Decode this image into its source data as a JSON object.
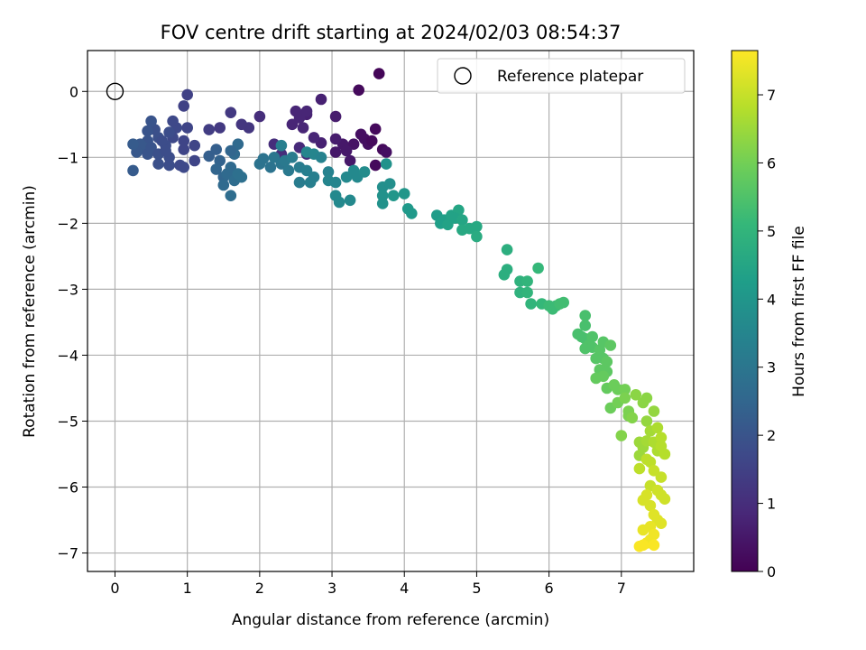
{
  "chart_data": {
    "type": "scatter",
    "title": "FOV centre drift starting at 2024/02/03 08:54:37",
    "xlabel": "Angular distance from reference (arcmin)",
    "ylabel": "Rotation from reference (arcmin)",
    "xlim": [
      -0.38,
      8.0
    ],
    "ylim": [
      -7.28,
      0.62
    ],
    "xticks": [
      0,
      1,
      2,
      3,
      4,
      5,
      6,
      7
    ],
    "yticks": [
      0,
      -1,
      -2,
      -3,
      -4,
      -5,
      -6,
      -7
    ],
    "grid": true,
    "legend": {
      "position": "top-right",
      "entries": [
        {
          "label": "Reference platepar",
          "marker": "open-circle"
        }
      ]
    },
    "reference_point": {
      "x": 0,
      "y": 0
    },
    "colorbar": {
      "label": "Hours from first FF file",
      "colormap": "viridis",
      "range": [
        0,
        7.65
      ],
      "ticks": [
        0,
        1,
        2,
        3,
        4,
        5,
        6,
        7
      ],
      "colors": [
        "#440154",
        "#482878",
        "#3e4989",
        "#31688e",
        "#26828e",
        "#1f9e89",
        "#35b779",
        "#6ece58",
        "#b5de2b",
        "#fde725"
      ]
    },
    "series": [
      {
        "points": [
          [
            3.65,
            0.27,
            0.1
          ],
          [
            3.37,
            0.02,
            0.2
          ],
          [
            3.6,
            -0.57,
            0.2
          ],
          [
            3.45,
            -0.72,
            0.3
          ],
          [
            3.5,
            -0.8,
            0.3
          ],
          [
            3.7,
            -0.88,
            0.2
          ],
          [
            3.75,
            -0.92,
            0.3
          ],
          [
            3.4,
            -0.65,
            0.3
          ],
          [
            3.55,
            -0.75,
            0.2
          ],
          [
            3.3,
            -0.8,
            0.4
          ],
          [
            3.6,
            -1.12,
            0.2
          ],
          [
            3.15,
            -0.8,
            0.5
          ],
          [
            3.05,
            -0.72,
            0.6
          ],
          [
            3.2,
            -0.9,
            0.5
          ],
          [
            3.05,
            -0.92,
            0.5
          ],
          [
            3.25,
            -1.05,
            0.5
          ],
          [
            2.85,
            -0.78,
            0.7
          ],
          [
            2.85,
            -0.12,
            0.7
          ],
          [
            2.65,
            -0.35,
            0.7
          ],
          [
            2.55,
            -0.4,
            0.8
          ],
          [
            2.45,
            -0.5,
            0.8
          ],
          [
            2.6,
            -0.55,
            0.8
          ],
          [
            2.75,
            -0.7,
            0.8
          ],
          [
            2.55,
            -0.85,
            0.9
          ],
          [
            2.65,
            -0.95,
            1.0
          ],
          [
            2.3,
            -0.95,
            1.0
          ],
          [
            2.5,
            -0.3,
            0.8
          ],
          [
            2.65,
            -0.3,
            0.8
          ],
          [
            2.2,
            -0.8,
            1.0
          ],
          [
            3.05,
            -0.38,
            0.6
          ],
          [
            2.0,
            -0.38,
            1.0
          ],
          [
            1.85,
            -0.55,
            1.2
          ],
          [
            1.75,
            -0.5,
            1.2
          ],
          [
            1.6,
            -0.32,
            1.3
          ],
          [
            1.45,
            -0.55,
            1.3
          ],
          [
            1.3,
            -0.58,
            1.4
          ],
          [
            1.0,
            -0.05,
            1.5
          ],
          [
            0.95,
            -0.22,
            1.5
          ],
          [
            1.0,
            -0.55,
            1.6
          ],
          [
            0.95,
            -0.75,
            1.6
          ],
          [
            0.85,
            -0.55,
            1.7
          ],
          [
            0.8,
            -0.45,
            1.7
          ],
          [
            0.8,
            -0.7,
            1.7
          ],
          [
            0.75,
            -0.62,
            1.8
          ],
          [
            0.7,
            -0.82,
            1.8
          ],
          [
            0.6,
            -0.7,
            1.9
          ],
          [
            0.55,
            -0.58,
            1.9
          ],
          [
            0.5,
            -0.45,
            2.0
          ],
          [
            0.45,
            -0.6,
            2.0
          ],
          [
            0.45,
            -0.75,
            2.0
          ],
          [
            0.4,
            -0.85,
            2.1
          ],
          [
            0.35,
            -0.8,
            2.1
          ],
          [
            0.3,
            -0.92,
            2.1
          ],
          [
            0.25,
            -0.8,
            2.2
          ],
          [
            0.25,
            -1.2,
            2.2
          ],
          [
            0.45,
            -0.95,
            2.0
          ],
          [
            0.5,
            -0.85,
            2.0
          ],
          [
            0.6,
            -0.95,
            1.9
          ],
          [
            0.6,
            -1.1,
            1.9
          ],
          [
            0.75,
            -1.0,
            1.8
          ],
          [
            0.75,
            -1.12,
            1.8
          ],
          [
            0.9,
            -1.12,
            1.7
          ],
          [
            0.95,
            -1.15,
            1.7
          ],
          [
            0.95,
            -0.88,
            1.6
          ],
          [
            1.1,
            -0.82,
            1.6
          ],
          [
            1.1,
            -1.05,
            1.6
          ],
          [
            0.65,
            -0.75,
            1.8
          ],
          [
            0.7,
            -0.9,
            1.8
          ],
          [
            1.3,
            -0.98,
            2.3
          ],
          [
            1.4,
            -0.88,
            2.3
          ],
          [
            1.45,
            -1.05,
            2.4
          ],
          [
            1.4,
            -1.18,
            2.5
          ],
          [
            1.5,
            -1.3,
            2.5
          ],
          [
            1.5,
            -1.42,
            2.6
          ],
          [
            1.55,
            -1.25,
            2.6
          ],
          [
            1.6,
            -1.15,
            2.6
          ],
          [
            1.6,
            -1.58,
            2.7
          ],
          [
            1.65,
            -1.35,
            2.7
          ],
          [
            1.7,
            -1.25,
            2.8
          ],
          [
            1.75,
            -1.3,
            2.8
          ],
          [
            1.65,
            -0.95,
            2.6
          ],
          [
            1.7,
            -0.8,
            2.6
          ],
          [
            1.6,
            -0.9,
            2.5
          ],
          [
            2.0,
            -1.1,
            2.9
          ],
          [
            2.05,
            -1.02,
            2.9
          ],
          [
            2.15,
            -1.15,
            2.9
          ],
          [
            2.2,
            -1.0,
            3.0
          ],
          [
            2.3,
            -1.1,
            3.0
          ],
          [
            2.4,
            -1.2,
            3.1
          ],
          [
            2.35,
            -1.05,
            3.1
          ],
          [
            2.3,
            -0.82,
            3.3
          ],
          [
            2.45,
            -1.0,
            3.2
          ],
          [
            2.55,
            -1.15,
            3.2
          ],
          [
            2.55,
            -1.38,
            3.2
          ],
          [
            2.65,
            -1.2,
            3.3
          ],
          [
            2.7,
            -1.38,
            3.3
          ],
          [
            2.75,
            -1.3,
            3.3
          ],
          [
            2.65,
            -0.92,
            3.5
          ],
          [
            2.75,
            -0.95,
            3.5
          ],
          [
            2.85,
            -1.0,
            3.4
          ],
          [
            2.95,
            -1.22,
            3.4
          ],
          [
            2.95,
            -1.35,
            3.5
          ],
          [
            3.05,
            -1.38,
            3.5
          ],
          [
            3.05,
            -1.58,
            3.6
          ],
          [
            3.1,
            -1.68,
            3.6
          ],
          [
            3.25,
            -1.65,
            3.6
          ],
          [
            3.2,
            -1.3,
            3.6
          ],
          [
            3.3,
            -1.2,
            3.6
          ],
          [
            3.35,
            -1.3,
            3.6
          ],
          [
            3.45,
            -1.22,
            3.7
          ],
          [
            3.75,
            -1.1,
            3.9
          ],
          [
            3.7,
            -1.45,
            3.8
          ],
          [
            3.8,
            -1.4,
            3.8
          ],
          [
            3.7,
            -1.58,
            3.9
          ],
          [
            3.7,
            -1.7,
            3.9
          ],
          [
            3.85,
            -1.58,
            4.0
          ],
          [
            4.0,
            -1.55,
            4.0
          ],
          [
            4.05,
            -1.78,
            4.1
          ],
          [
            4.1,
            -1.85,
            4.1
          ],
          [
            4.45,
            -1.88,
            4.2
          ],
          [
            4.55,
            -1.95,
            4.3
          ],
          [
            4.5,
            -2.0,
            4.3
          ],
          [
            4.6,
            -2.02,
            4.4
          ],
          [
            4.65,
            -1.88,
            4.4
          ],
          [
            4.75,
            -1.8,
            4.5
          ],
          [
            4.7,
            -1.92,
            4.4
          ],
          [
            4.8,
            -1.95,
            4.5
          ],
          [
            4.8,
            -2.1,
            4.6
          ],
          [
            4.9,
            -2.08,
            4.6
          ],
          [
            5.0,
            -2.05,
            4.6
          ],
          [
            5.0,
            -2.2,
            4.7
          ],
          [
            5.42,
            -2.4,
            4.8
          ],
          [
            5.42,
            -2.7,
            4.8
          ],
          [
            5.38,
            -2.78,
            4.8
          ],
          [
            5.6,
            -2.88,
            4.9
          ],
          [
            5.6,
            -3.05,
            4.9
          ],
          [
            5.7,
            -2.88,
            5.0
          ],
          [
            5.7,
            -3.05,
            5.0
          ],
          [
            5.75,
            -3.22,
            5.0
          ],
          [
            5.85,
            -2.68,
            5.1
          ],
          [
            5.9,
            -3.22,
            5.1
          ],
          [
            6.0,
            -3.25,
            5.2
          ],
          [
            6.05,
            -3.3,
            5.2
          ],
          [
            6.1,
            -3.25,
            5.2
          ],
          [
            6.15,
            -3.22,
            5.3
          ],
          [
            6.2,
            -3.2,
            5.3
          ],
          [
            6.4,
            -3.68,
            5.4
          ],
          [
            6.45,
            -3.72,
            5.4
          ],
          [
            6.5,
            -3.4,
            5.4
          ],
          [
            6.5,
            -3.55,
            5.4
          ],
          [
            6.5,
            -3.75,
            5.4
          ],
          [
            6.55,
            -3.85,
            5.5
          ],
          [
            6.5,
            -3.9,
            5.5
          ],
          [
            6.6,
            -3.72,
            5.5
          ],
          [
            6.6,
            -3.88,
            5.5
          ],
          [
            6.65,
            -4.05,
            5.6
          ],
          [
            6.7,
            -3.92,
            5.6
          ],
          [
            6.75,
            -3.8,
            5.6
          ],
          [
            6.75,
            -4.05,
            5.6
          ],
          [
            6.7,
            -4.22,
            5.7
          ],
          [
            6.8,
            -4.1,
            5.7
          ],
          [
            6.8,
            -4.25,
            5.7
          ],
          [
            6.85,
            -3.85,
            5.7
          ],
          [
            6.65,
            -4.35,
            5.8
          ],
          [
            6.75,
            -4.32,
            5.8
          ],
          [
            6.8,
            -4.5,
            5.8
          ],
          [
            6.85,
            -4.8,
            5.9
          ],
          [
            6.9,
            -4.45,
            5.9
          ],
          [
            6.95,
            -4.52,
            5.9
          ],
          [
            6.95,
            -4.72,
            6.0
          ],
          [
            7.05,
            -4.52,
            6.0
          ],
          [
            7.05,
            -4.65,
            6.1
          ],
          [
            7.1,
            -4.85,
            6.1
          ],
          [
            7.1,
            -4.92,
            6.1
          ],
          [
            7.0,
            -5.22,
            6.2
          ],
          [
            7.15,
            -4.95,
            6.2
          ],
          [
            7.2,
            -4.6,
            6.3
          ],
          [
            7.3,
            -4.72,
            6.3
          ],
          [
            7.35,
            -4.65,
            6.3
          ],
          [
            7.35,
            -5.0,
            6.4
          ],
          [
            7.45,
            -4.85,
            6.4
          ],
          [
            7.25,
            -5.32,
            6.5
          ],
          [
            7.3,
            -5.4,
            6.5
          ],
          [
            7.25,
            -5.52,
            6.5
          ],
          [
            7.35,
            -5.3,
            6.6
          ],
          [
            7.4,
            -5.15,
            6.6
          ],
          [
            7.45,
            -5.32,
            6.7
          ],
          [
            7.5,
            -5.1,
            6.7
          ],
          [
            7.5,
            -5.45,
            6.7
          ],
          [
            7.55,
            -5.25,
            6.8
          ],
          [
            7.55,
            -5.38,
            6.8
          ],
          [
            7.6,
            -5.5,
            6.8
          ],
          [
            7.25,
            -5.72,
            6.9
          ],
          [
            7.35,
            -5.58,
            6.9
          ],
          [
            7.4,
            -5.62,
            6.9
          ],
          [
            7.45,
            -5.75,
            7.0
          ],
          [
            7.55,
            -5.85,
            7.0
          ],
          [
            7.4,
            -5.98,
            7.0
          ],
          [
            7.5,
            -6.05,
            7.1
          ],
          [
            7.55,
            -6.12,
            7.1
          ],
          [
            7.6,
            -6.18,
            7.1
          ],
          [
            7.35,
            -6.12,
            7.2
          ],
          [
            7.3,
            -6.2,
            7.2
          ],
          [
            7.4,
            -6.28,
            7.2
          ],
          [
            7.45,
            -6.42,
            7.3
          ],
          [
            7.5,
            -6.5,
            7.3
          ],
          [
            7.55,
            -6.55,
            7.3
          ],
          [
            7.4,
            -6.6,
            7.4
          ],
          [
            7.3,
            -6.65,
            7.4
          ],
          [
            7.45,
            -6.72,
            7.5
          ],
          [
            7.4,
            -6.8,
            7.5
          ],
          [
            7.35,
            -6.85,
            7.5
          ],
          [
            7.45,
            -6.88,
            7.6
          ],
          [
            7.25,
            -6.9,
            7.6
          ],
          [
            7.3,
            -6.88,
            7.6
          ]
        ]
      }
    ]
  }
}
